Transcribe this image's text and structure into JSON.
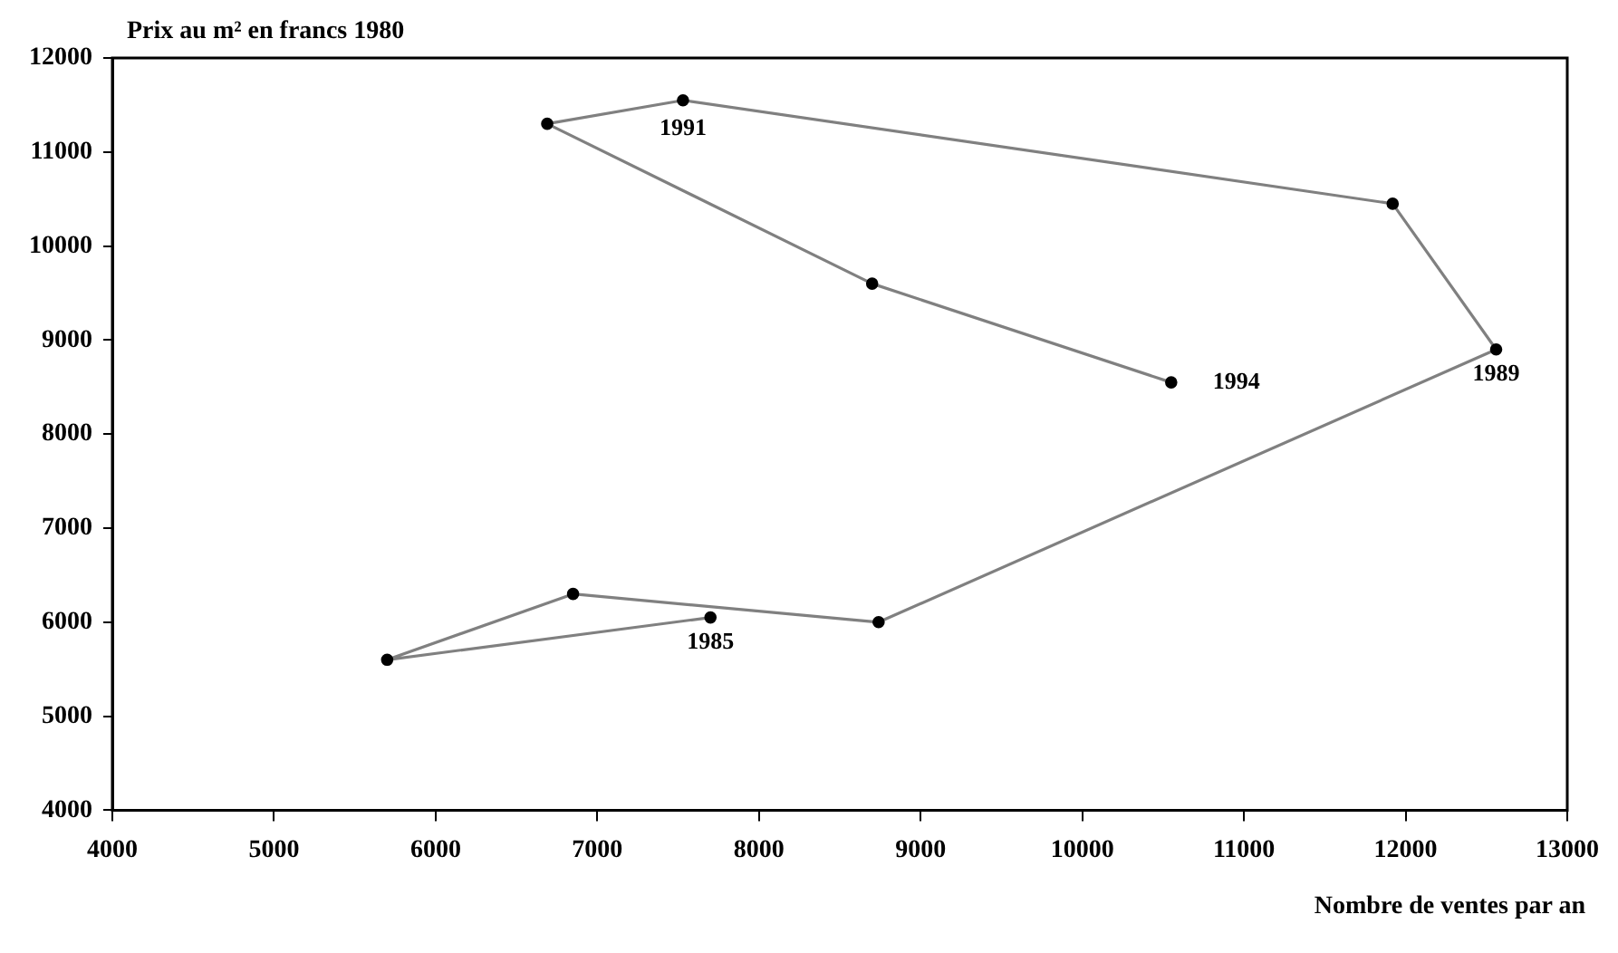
{
  "chart_data": {
    "type": "line",
    "ylabel": "Prix au m² en francs 1980",
    "xlabel": "Nombre de ventes par an",
    "x": [
      7700,
      5700,
      6850,
      8740,
      12560,
      11920,
      7530,
      6690,
      8700,
      10550
    ],
    "series": [
      {
        "color": "#808080",
        "values": [
          6050,
          5600,
          6300,
          6000,
          8900,
          10450,
          11550,
          11300,
          9600,
          8550
        ]
      }
    ],
    "xlim": [
      4000,
      13000
    ],
    "xticks": [
      4000,
      5000,
      6000,
      7000,
      8000,
      9000,
      10000,
      11000,
      12000,
      13000
    ],
    "ylim": [
      4000,
      12000
    ],
    "yticks": [
      4000,
      5000,
      6000,
      7000,
      8000,
      9000,
      10000,
      11000,
      12000
    ],
    "grid": false,
    "legend": false,
    "marker": "circle",
    "line_style": "solid",
    "annotations": [
      {
        "text": "1985",
        "x": 7700,
        "y": 6050
      },
      {
        "text": "1989",
        "x": 12560,
        "y": 8900
      },
      {
        "text": "1991",
        "x": 7530,
        "y": 11550
      },
      {
        "text": "1994",
        "x": 10550,
        "y": 8550
      }
    ]
  }
}
